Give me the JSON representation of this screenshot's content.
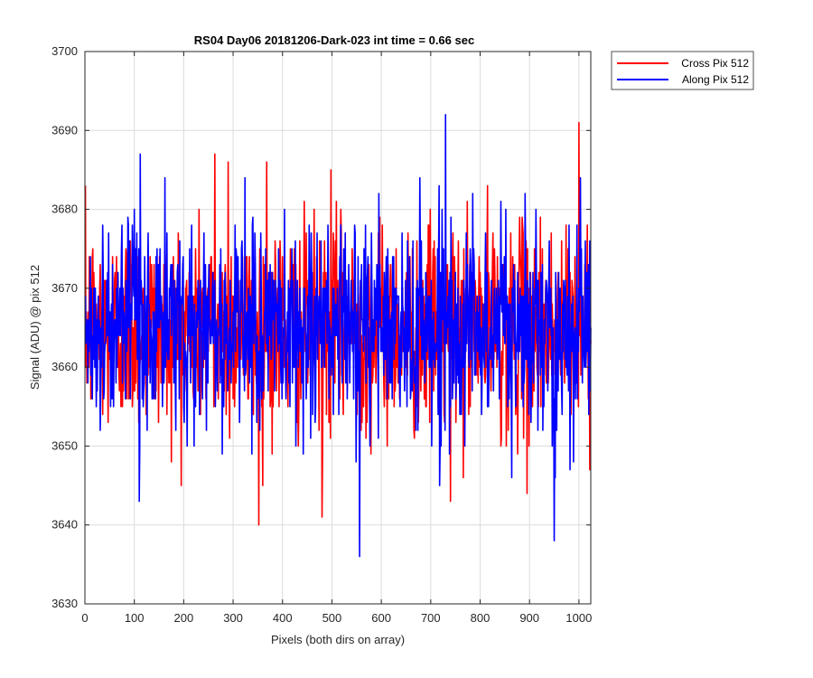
{
  "chart_data": {
    "type": "line",
    "title": "RS04 Day06 20181206-Dark-023 int time = 0.66 sec",
    "xlabel": "Pixels (both dirs on array)",
    "ylabel": "Signal (ADU) @ pix 512",
    "xlim": [
      0,
      1024
    ],
    "ylim": [
      3630,
      3700
    ],
    "xticks": [
      0,
      100,
      200,
      300,
      400,
      500,
      600,
      700,
      800,
      900,
      1000
    ],
    "yticks": [
      3630,
      3640,
      3650,
      3660,
      3670,
      3680,
      3690,
      3700
    ],
    "grid": true,
    "legend_position": "outside-top-right",
    "series": [
      {
        "name": "Cross Pix 512",
        "color": "#ff0000",
        "x_range": [
          1,
          1024
        ],
        "mean": 3665,
        "notable_points": [
          [
            263,
            3687
          ],
          [
            290,
            3686
          ],
          [
            352,
            3640
          ],
          [
            368,
            3686
          ],
          [
            480,
            3641
          ],
          [
            498,
            3685
          ],
          [
            740,
            3643
          ],
          [
            895,
            3644
          ],
          [
            1000,
            3691
          ]
        ]
      },
      {
        "name": "Along Pix 512",
        "color": "#0000ff",
        "x_range": [
          1,
          1024
        ],
        "mean": 3665,
        "notable_points": [
          [
            112,
            3687
          ],
          [
            110,
            3643
          ],
          [
            556,
            3636
          ],
          [
            730,
            3692
          ],
          [
            950,
            3638
          ],
          [
            1003,
            3684
          ]
        ]
      }
    ]
  }
}
